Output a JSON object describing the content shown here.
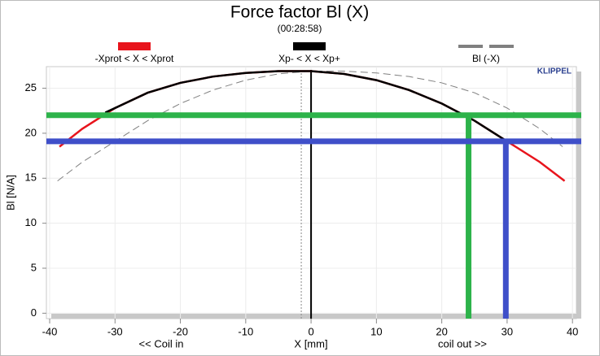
{
  "chart_data": {
    "type": "line",
    "title": "Force factor Bl (X)",
    "subtitle": "(00:28:58)",
    "ylabel": "Bl [N/A]",
    "xlabel": "X [mm]",
    "annotations": [
      "<< Coil in",
      "coil out >>",
      "KLIPPEL"
    ],
    "xlim": [
      -40.5,
      40.6
    ],
    "ylim": [
      -0.6,
      27.4
    ],
    "xticks": [
      -40,
      -30,
      -20,
      -10,
      0,
      10,
      20,
      30,
      40
    ],
    "yticks": [
      0,
      5,
      10,
      15,
      20,
      25
    ],
    "grid": true,
    "series": [
      {
        "name": "-Xprot < X < Xprot",
        "color": "#e8141c",
        "dash": false,
        "x": [
          -38.5,
          -35,
          -30,
          -25,
          -20,
          -15,
          -10,
          -5,
          0,
          5,
          10,
          15,
          20,
          25,
          30,
          35,
          38.8
        ],
        "values": [
          18.5,
          20.5,
          22.8,
          24.5,
          25.6,
          26.3,
          26.7,
          26.9,
          26.9,
          26.6,
          25.9,
          24.8,
          23.3,
          21.4,
          19.1,
          16.8,
          14.7
        ]
      },
      {
        "name": "Xp- < X < Xp+",
        "color": "#000000",
        "dash": false,
        "x": [
          -31.5,
          -30,
          -25,
          -20,
          -15,
          -10,
          -5,
          0,
          5,
          10,
          15,
          20,
          25,
          30
        ],
        "values": [
          22.3,
          22.8,
          24.5,
          25.6,
          26.3,
          26.7,
          26.9,
          26.9,
          26.6,
          25.9,
          24.8,
          23.3,
          21.4,
          19.1
        ]
      },
      {
        "name": "Bl (-X)",
        "color": "#808080",
        "dash": true,
        "x": [
          -38.8,
          -35,
          -30,
          -25,
          -20,
          -15,
          -10,
          -5,
          0,
          5,
          10,
          15,
          20,
          25,
          30,
          35,
          38.5
        ],
        "values": [
          14.7,
          16.8,
          19.1,
          21.4,
          23.3,
          24.8,
          25.9,
          26.6,
          26.9,
          26.9,
          26.7,
          26.3,
          25.6,
          24.5,
          22.8,
          20.5,
          18.5
        ]
      }
    ],
    "guides": [
      {
        "color": "#2db34a",
        "x": 24.1,
        "y": 22
      },
      {
        "color": "#3f4fc9",
        "x": 29.8,
        "y": 19.1
      }
    ]
  }
}
